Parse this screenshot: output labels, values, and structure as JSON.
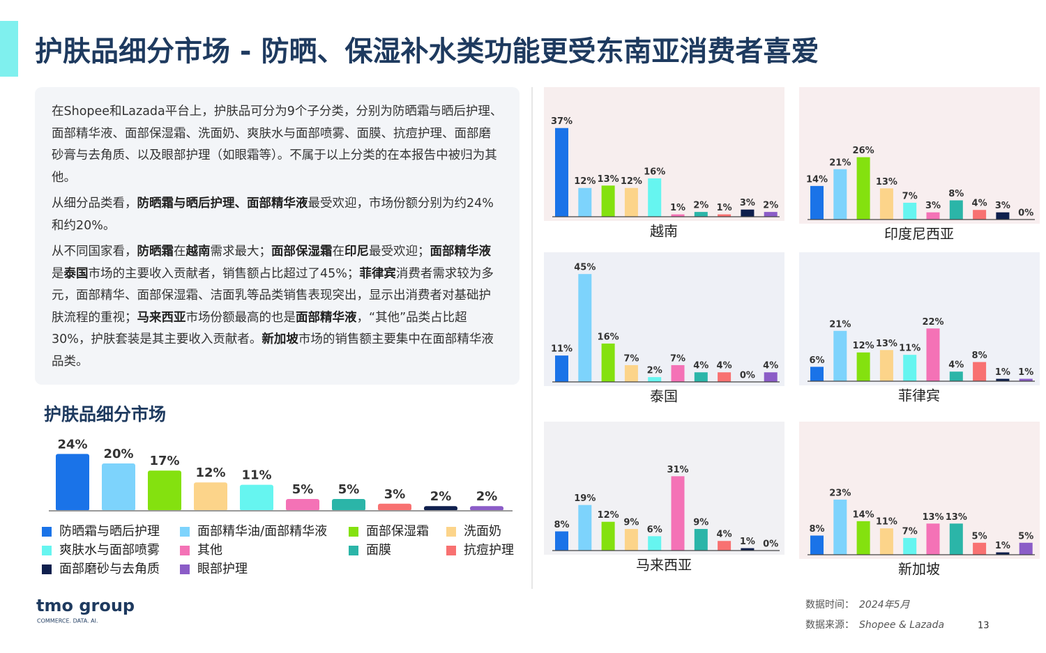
{
  "header": {
    "title": "护肤品细分市场 - 防晒、保湿补水类功能更受东南亚消费者喜爱"
  },
  "text": {
    "paragraphs": [
      [
        {
          "text": "在Shopee和Lazada平台上，护肤品可分为9个子分类，分别为防晒霜与晒后护理、面部精华液、面部保湿霜、洗面奶、爽肤水与面部喷雾、面膜、抗痘护理、面部磨砂膏与去角质、以及眼部护理（如眼霜等）。不属于以上分类的在本报告中被归为其他。",
          "bold": false
        }
      ],
      [
        {
          "text": "从细分品类看，",
          "bold": false
        },
        {
          "text": "防晒霜与晒后护理、面部精华液",
          "bold": true
        },
        {
          "text": "最受欢迎，市场份额分别为约24%和约20%。",
          "bold": false
        }
      ],
      [
        {
          "text": "从不同国家看，",
          "bold": false
        },
        {
          "text": "防晒霜",
          "bold": true
        },
        {
          "text": "在",
          "bold": false
        },
        {
          "text": "越南",
          "bold": true
        },
        {
          "text": "需求最大；",
          "bold": false
        },
        {
          "text": "面部保湿霜",
          "bold": true
        },
        {
          "text": "在",
          "bold": false
        },
        {
          "text": "印尼",
          "bold": true
        },
        {
          "text": "最受欢迎；",
          "bold": false
        },
        {
          "text": "面部精华液",
          "bold": true
        },
        {
          "text": "是",
          "bold": false
        },
        {
          "text": "泰国",
          "bold": true
        },
        {
          "text": "市场的主要收入贡献者，销售额占比超过了45%；",
          "bold": false
        },
        {
          "text": "菲律宾",
          "bold": true
        },
        {
          "text": "消费者需求较为多元，面部精华、面部保湿霜、洁面乳等品类销售表现突出，显示出消费者对基础护肤流程的重视；",
          "bold": false
        },
        {
          "text": "马来西亚",
          "bold": true
        },
        {
          "text": "市场份额最高的也是",
          "bold": false
        },
        {
          "text": "面部精华液",
          "bold": true
        },
        {
          "text": "，“其他”品类占比超30%，护肤套装是其主要收入贡献者。",
          "bold": false
        },
        {
          "text": "新加坡",
          "bold": true
        },
        {
          "text": "市场的销售额主要集中在面部精华液品类。",
          "bold": false
        }
      ]
    ]
  },
  "chart_data": [
    {
      "type": "bar",
      "title": "护肤品细分市场",
      "categories": [
        "防晒霜与晒后护理",
        "面部精华油/面部精华液",
        "面部保湿霜",
        "洗面奶",
        "爽肤水与面部喷雾",
        "其他",
        "面膜",
        "抗痘护理",
        "面部磨砂与去角质",
        "眼部护理"
      ],
      "colors": [
        "#1a73e8",
        "#7dd3fc",
        "#84e10f",
        "#fcd48a",
        "#66f5f0",
        "#f472b6",
        "#2bb5a8",
        "#f87171",
        "#0f1f4d",
        "#8b5cc7"
      ],
      "values": [
        24,
        20,
        17,
        12,
        11,
        5,
        5,
        3,
        2,
        2
      ],
      "value_labels": [
        "24%",
        "20%",
        "17%",
        "12%",
        "11%",
        "5%",
        "5%",
        "3%",
        "2%",
        "2%"
      ],
      "ylim": [
        0,
        25
      ]
    },
    {
      "type": "bar",
      "title": "越南",
      "values": [
        37,
        12,
        13,
        12,
        16,
        1,
        2,
        1,
        3,
        2
      ],
      "value_labels": [
        "37%",
        "12%",
        "13%",
        "12%",
        "16%",
        "1%",
        "2%",
        "1%",
        "3%",
        "2%"
      ],
      "ylim": [
        0,
        50
      ]
    },
    {
      "type": "bar",
      "title": "印度尼西亚",
      "values": [
        14,
        21,
        26,
        13,
        7,
        3,
        8,
        4,
        3,
        0
      ],
      "value_labels": [
        "14%",
        "21%",
        "26%",
        "13%",
        "7%",
        "3%",
        "8%",
        "4%",
        "3%",
        "0%"
      ],
      "ylim": [
        0,
        50
      ]
    },
    {
      "type": "bar",
      "title": "泰国",
      "values": [
        11,
        45,
        16,
        7,
        2,
        7,
        4,
        4,
        0,
        4
      ],
      "value_labels": [
        "11%",
        "45%",
        "16%",
        "7%",
        "2%",
        "7%",
        "4%",
        "4%",
        "0%",
        "4%"
      ],
      "ylim": [
        0,
        50
      ]
    },
    {
      "type": "bar",
      "title": "菲律宾",
      "values": [
        6,
        21,
        12,
        13,
        11,
        22,
        4,
        8,
        1,
        1
      ],
      "value_labels": [
        "6%",
        "21%",
        "12%",
        "13%",
        "11%",
        "22%",
        "4%",
        "8%",
        "1%",
        "1%"
      ],
      "ylim": [
        0,
        50
      ]
    },
    {
      "type": "bar",
      "title": "马来西亚",
      "values": [
        8,
        19,
        12,
        9,
        6,
        31,
        9,
        4,
        1,
        0
      ],
      "value_labels": [
        "8%",
        "19%",
        "12%",
        "9%",
        "6%",
        "31%",
        "9%",
        "4%",
        "1%",
        "0%"
      ],
      "ylim": [
        0,
        50
      ]
    },
    {
      "type": "bar",
      "title": "新加坡",
      "values": [
        8,
        23,
        14,
        11,
        7,
        13,
        13,
        5,
        1,
        5
      ],
      "value_labels": [
        "8%",
        "23%",
        "14%",
        "11%",
        "7%",
        "13%",
        "13%",
        "5%",
        "1%",
        "5%"
      ],
      "ylim": [
        0,
        50
      ]
    }
  ],
  "footer": {
    "logo": "tmo group",
    "tagline": "COMMERCE. DATA. AI.",
    "date_label": "数据时间：",
    "date": "2024年5月",
    "source_label": "数据来源：",
    "source": "Shopee & Lazada",
    "page": "13"
  }
}
